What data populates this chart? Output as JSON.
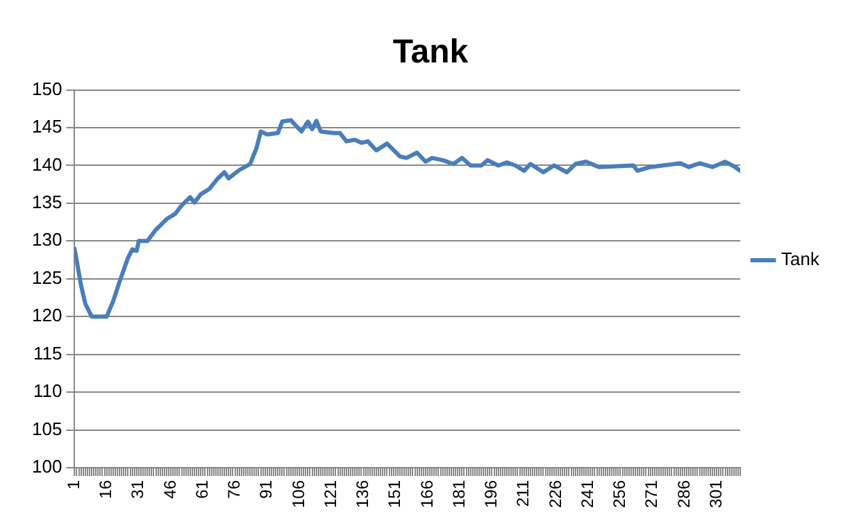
{
  "chart_data": {
    "type": "line",
    "title": "Tank",
    "grid": "y",
    "legend": "right",
    "marker": "none",
    "line_style": "solid",
    "xlim": [
      1,
      312
    ],
    "ylim": [
      100,
      150
    ],
    "yticks": [
      100,
      105,
      110,
      115,
      120,
      125,
      130,
      135,
      140,
      145,
      150
    ],
    "xticks": [
      1,
      {
        "value": 2,
        "label": null
      },
      {
        "value": 3,
        "label": null
      },
      {
        "value": 4,
        "label": null
      },
      {
        "value": 5,
        "label": null
      },
      {
        "value": 6,
        "label": null
      },
      {
        "value": 7,
        "label": null
      },
      {
        "value": 8,
        "label": null
      },
      {
        "value": 9,
        "label": null
      },
      {
        "value": 10,
        "label": null
      },
      {
        "value": 11,
        "label": null
      },
      {
        "value": 12,
        "label": null
      },
      {
        "value": 13,
        "label": null
      },
      {
        "value": 14,
        "label": null
      },
      {
        "value": 15,
        "label": null
      },
      16,
      {
        "value": 17,
        "label": null
      },
      {
        "value": 18,
        "label": null
      },
      {
        "value": 19,
        "label": null
      },
      {
        "value": 20,
        "label": null
      },
      {
        "value": 21,
        "label": null
      },
      {
        "value": 22,
        "label": null
      },
      {
        "value": 23,
        "label": null
      },
      {
        "value": 24,
        "label": null
      },
      {
        "value": 25,
        "label": null
      },
      {
        "value": 26,
        "label": null
      },
      {
        "value": 27,
        "label": null
      },
      {
        "value": 28,
        "label": null
      },
      {
        "value": 29,
        "label": null
      },
      {
        "value": 30,
        "label": null
      },
      31,
      {
        "value": 32,
        "label": null
      },
      {
        "value": 33,
        "label": null
      },
      {
        "value": 34,
        "label": null
      },
      {
        "value": 35,
        "label": null
      },
      {
        "value": 36,
        "label": null
      },
      {
        "value": 37,
        "label": null
      },
      {
        "value": 38,
        "label": null
      },
      {
        "value": 39,
        "label": null
      },
      {
        "value": 40,
        "label": null
      },
      {
        "value": 41,
        "label": null
      },
      {
        "value": 42,
        "label": null
      },
      {
        "value": 43,
        "label": null
      },
      {
        "value": 44,
        "label": null
      },
      {
        "value": 45,
        "label": null
      },
      46,
      {
        "value": 47,
        "label": null
      },
      {
        "value": 48,
        "label": null
      },
      {
        "value": 49,
        "label": null
      },
      {
        "value": 50,
        "label": null
      },
      {
        "value": 51,
        "label": null
      },
      {
        "value": 52,
        "label": null
      },
      {
        "value": 53,
        "label": null
      },
      {
        "value": 54,
        "label": null
      },
      {
        "value": 55,
        "label": null
      },
      {
        "value": 56,
        "label": null
      },
      {
        "value": 57,
        "label": null
      },
      {
        "value": 58,
        "label": null
      },
      {
        "value": 59,
        "label": null
      },
      {
        "value": 60,
        "label": null
      },
      61,
      {
        "value": 62,
        "label": null
      },
      {
        "value": 63,
        "label": null
      },
      {
        "value": 64,
        "label": null
      },
      {
        "value": 65,
        "label": null
      },
      {
        "value": 66,
        "label": null
      },
      {
        "value": 67,
        "label": null
      },
      {
        "value": 68,
        "label": null
      },
      {
        "value": 69,
        "label": null
      },
      {
        "value": 70,
        "label": null
      },
      {
        "value": 71,
        "label": null
      },
      {
        "value": 72,
        "label": null
      },
      {
        "value": 73,
        "label": null
      },
      {
        "value": 74,
        "label": null
      },
      {
        "value": 75,
        "label": null
      },
      76,
      {
        "value": 77,
        "label": null
      },
      {
        "value": 78,
        "label": null
      },
      {
        "value": 79,
        "label": null
      },
      {
        "value": 80,
        "label": null
      },
      {
        "value": 81,
        "label": null
      },
      {
        "value": 82,
        "label": null
      },
      {
        "value": 83,
        "label": null
      },
      {
        "value": 84,
        "label": null
      },
      {
        "value": 85,
        "label": null
      },
      {
        "value": 86,
        "label": null
      },
      {
        "value": 87,
        "label": null
      },
      {
        "value": 88,
        "label": null
      },
      {
        "value": 89,
        "label": null
      },
      {
        "value": 90,
        "label": null
      },
      91,
      {
        "value": 92,
        "label": null
      },
      {
        "value": 93,
        "label": null
      },
      {
        "value": 94,
        "label": null
      },
      {
        "value": 95,
        "label": null
      },
      {
        "value": 96,
        "label": null
      },
      {
        "value": 97,
        "label": null
      },
      {
        "value": 98,
        "label": null
      },
      {
        "value": 99,
        "label": null
      },
      {
        "value": 100,
        "label": null
      },
      {
        "value": 101,
        "label": null
      },
      {
        "value": 102,
        "label": null
      },
      {
        "value": 103,
        "label": null
      },
      {
        "value": 104,
        "label": null
      },
      {
        "value": 105,
        "label": null
      },
      106,
      {
        "value": 107,
        "label": null
      },
      {
        "value": 108,
        "label": null
      },
      {
        "value": 109,
        "label": null
      },
      {
        "value": 110,
        "label": null
      },
      {
        "value": 111,
        "label": null
      },
      {
        "value": 112,
        "label": null
      },
      {
        "value": 113,
        "label": null
      },
      {
        "value": 114,
        "label": null
      },
      {
        "value": 115,
        "label": null
      },
      {
        "value": 116,
        "label": null
      },
      {
        "value": 117,
        "label": null
      },
      {
        "value": 118,
        "label": null
      },
      {
        "value": 119,
        "label": null
      },
      {
        "value": 120,
        "label": null
      },
      121,
      {
        "value": 122,
        "label": null
      },
      {
        "value": 123,
        "label": null
      },
      {
        "value": 124,
        "label": null
      },
      {
        "value": 125,
        "label": null
      },
      {
        "value": 126,
        "label": null
      },
      {
        "value": 127,
        "label": null
      },
      {
        "value": 128,
        "label": null
      },
      {
        "value": 129,
        "label": null
      },
      {
        "value": 130,
        "label": null
      },
      {
        "value": 131,
        "label": null
      },
      {
        "value": 132,
        "label": null
      },
      {
        "value": 133,
        "label": null
      },
      {
        "value": 134,
        "label": null
      },
      {
        "value": 135,
        "label": null
      },
      136,
      {
        "value": 137,
        "label": null
      },
      {
        "value": 138,
        "label": null
      },
      {
        "value": 139,
        "label": null
      },
      {
        "value": 140,
        "label": null
      },
      {
        "value": 141,
        "label": null
      },
      {
        "value": 142,
        "label": null
      },
      {
        "value": 143,
        "label": null
      },
      {
        "value": 144,
        "label": null
      },
      {
        "value": 145,
        "label": null
      },
      {
        "value": 146,
        "label": null
      },
      {
        "value": 147,
        "label": null
      },
      {
        "value": 148,
        "label": null
      },
      {
        "value": 149,
        "label": null
      },
      {
        "value": 150,
        "label": null
      },
      151,
      {
        "value": 152,
        "label": null
      },
      {
        "value": 153,
        "label": null
      },
      {
        "value": 154,
        "label": null
      },
      {
        "value": 155,
        "label": null
      },
      {
        "value": 156,
        "label": null
      },
      {
        "value": 157,
        "label": null
      },
      {
        "value": 158,
        "label": null
      },
      {
        "value": 159,
        "label": null
      },
      {
        "value": 160,
        "label": null
      },
      {
        "value": 161,
        "label": null
      },
      {
        "value": 162,
        "label": null
      },
      {
        "value": 163,
        "label": null
      },
      {
        "value": 164,
        "label": null
      },
      {
        "value": 165,
        "label": null
      },
      166,
      {
        "value": 167,
        "label": null
      },
      {
        "value": 168,
        "label": null
      },
      {
        "value": 169,
        "label": null
      },
      {
        "value": 170,
        "label": null
      },
      {
        "value": 171,
        "label": null
      },
      {
        "value": 172,
        "label": null
      },
      {
        "value": 173,
        "label": null
      },
      {
        "value": 174,
        "label": null
      },
      {
        "value": 175,
        "label": null
      },
      {
        "value": 176,
        "label": null
      },
      {
        "value": 177,
        "label": null
      },
      {
        "value": 178,
        "label": null
      },
      {
        "value": 179,
        "label": null
      },
      {
        "value": 180,
        "label": null
      },
      181,
      {
        "value": 182,
        "label": null
      },
      {
        "value": 183,
        "label": null
      },
      {
        "value": 184,
        "label": null
      },
      {
        "value": 185,
        "label": null
      },
      {
        "value": 186,
        "label": null
      },
      {
        "value": 187,
        "label": null
      },
      {
        "value": 188,
        "label": null
      },
      {
        "value": 189,
        "label": null
      },
      {
        "value": 190,
        "label": null
      },
      {
        "value": 191,
        "label": null
      },
      {
        "value": 192,
        "label": null
      },
      {
        "value": 193,
        "label": null
      },
      {
        "value": 194,
        "label": null
      },
      {
        "value": 195,
        "label": null
      },
      196,
      {
        "value": 197,
        "label": null
      },
      {
        "value": 198,
        "label": null
      },
      {
        "value": 199,
        "label": null
      },
      {
        "value": 200,
        "label": null
      },
      {
        "value": 201,
        "label": null
      },
      {
        "value": 202,
        "label": null
      },
      {
        "value": 203,
        "label": null
      },
      {
        "value": 204,
        "label": null
      },
      {
        "value": 205,
        "label": null
      },
      {
        "value": 206,
        "label": null
      },
      {
        "value": 207,
        "label": null
      },
      {
        "value": 208,
        "label": null
      },
      {
        "value": 209,
        "label": null
      },
      {
        "value": 210,
        "label": null
      },
      211,
      {
        "value": 212,
        "label": null
      },
      {
        "value": 213,
        "label": null
      },
      {
        "value": 214,
        "label": null
      },
      {
        "value": 215,
        "label": null
      },
      {
        "value": 216,
        "label": null
      },
      {
        "value": 217,
        "label": null
      },
      {
        "value": 218,
        "label": null
      },
      {
        "value": 219,
        "label": null
      },
      {
        "value": 220,
        "label": null
      },
      {
        "value": 221,
        "label": null
      },
      {
        "value": 222,
        "label": null
      },
      {
        "value": 223,
        "label": null
      },
      {
        "value": 224,
        "label": null
      },
      {
        "value": 225,
        "label": null
      },
      226,
      {
        "value": 227,
        "label": null
      },
      {
        "value": 228,
        "label": null
      },
      {
        "value": 229,
        "label": null
      },
      {
        "value": 230,
        "label": null
      },
      {
        "value": 231,
        "label": null
      },
      {
        "value": 232,
        "label": null
      },
      {
        "value": 233,
        "label": null
      },
      {
        "value": 234,
        "label": null
      },
      {
        "value": 235,
        "label": null
      },
      {
        "value": 236,
        "label": null
      },
      {
        "value": 237,
        "label": null
      },
      {
        "value": 238,
        "label": null
      },
      {
        "value": 239,
        "label": null
      },
      {
        "value": 240,
        "label": null
      },
      241,
      {
        "value": 242,
        "label": null
      },
      {
        "value": 243,
        "label": null
      },
      {
        "value": 244,
        "label": null
      },
      {
        "value": 245,
        "label": null
      },
      {
        "value": 246,
        "label": null
      },
      {
        "value": 247,
        "label": null
      },
      {
        "value": 248,
        "label": null
      },
      {
        "value": 249,
        "label": null
      },
      {
        "value": 250,
        "label": null
      },
      {
        "value": 251,
        "label": null
      },
      {
        "value": 252,
        "label": null
      },
      {
        "value": 253,
        "label": null
      },
      {
        "value": 254,
        "label": null
      },
      {
        "value": 255,
        "label": null
      },
      256,
      {
        "value": 257,
        "label": null
      },
      {
        "value": 258,
        "label": null
      },
      {
        "value": 259,
        "label": null
      },
      {
        "value": 260,
        "label": null
      },
      {
        "value": 261,
        "label": null
      },
      {
        "value": 262,
        "label": null
      },
      {
        "value": 263,
        "label": null
      },
      {
        "value": 264,
        "label": null
      },
      {
        "value": 265,
        "label": null
      },
      {
        "value": 266,
        "label": null
      },
      {
        "value": 267,
        "label": null
      },
      {
        "value": 268,
        "label": null
      },
      {
        "value": 269,
        "label": null
      },
      {
        "value": 270,
        "label": null
      },
      271,
      {
        "value": 272,
        "label": null
      },
      {
        "value": 273,
        "label": null
      },
      {
        "value": 274,
        "label": null
      },
      {
        "value": 275,
        "label": null
      },
      {
        "value": 276,
        "label": null
      },
      {
        "value": 277,
        "label": null
      },
      {
        "value": 278,
        "label": null
      },
      {
        "value": 279,
        "label": null
      },
      {
        "value": 280,
        "label": null
      },
      {
        "value": 281,
        "label": null
      },
      {
        "value": 282,
        "label": null
      },
      {
        "value": 283,
        "label": null
      },
      {
        "value": 284,
        "label": null
      },
      {
        "value": 285,
        "label": null
      },
      286,
      {
        "value": 287,
        "label": null
      },
      {
        "value": 288,
        "label": null
      },
      {
        "value": 289,
        "label": null
      },
      {
        "value": 290,
        "label": null
      },
      {
        "value": 291,
        "label": null
      },
      {
        "value": 292,
        "label": null
      },
      {
        "value": 293,
        "label": null
      },
      {
        "value": 294,
        "label": null
      },
      {
        "value": 295,
        "label": null
      },
      {
        "value": 296,
        "label": null
      },
      {
        "value": 297,
        "label": null
      },
      {
        "value": 298,
        "label": null
      },
      {
        "value": 299,
        "label": null
      },
      {
        "value": 300,
        "label": null
      },
      301,
      {
        "value": 302,
        "label": null
      },
      {
        "value": 303,
        "label": null
      },
      {
        "value": 304,
        "label": null
      },
      {
        "value": 305,
        "label": null
      },
      {
        "value": 306,
        "label": null
      },
      {
        "value": 307,
        "label": null
      },
      {
        "value": 308,
        "label": null
      },
      {
        "value": 309,
        "label": null
      },
      {
        "value": 310,
        "label": null
      },
      {
        "value": 311,
        "label": null
      },
      {
        "value": 312,
        "label": null
      }
    ],
    "series": [
      {
        "name": "Tank",
        "color": "#4a7ebb",
        "x": [
          1,
          4,
          6,
          9,
          16,
          19,
          22,
          26,
          28,
          30,
          31,
          35,
          39,
          44,
          48,
          51,
          55,
          57,
          60,
          64,
          68,
          71,
          73,
          78,
          83,
          86,
          88,
          91,
          96,
          98,
          102,
          107,
          110,
          112,
          114,
          116,
          122,
          125,
          128,
          132,
          135,
          138,
          142,
          147,
          153,
          156,
          161,
          165,
          168,
          173,
          178,
          182,
          186,
          191,
          194,
          199,
          203,
          207,
          211,
          214,
          220,
          225,
          231,
          235,
          240,
          246,
          262,
          264,
          270,
          284,
          288,
          293,
          299,
          305,
          309,
          312
        ],
        "values": [
          129,
          124.2,
          121.7,
          120,
          120,
          122,
          124.6,
          127.8,
          128.9,
          128.7,
          130,
          130,
          131.5,
          132.9,
          133.6,
          134.7,
          135.8,
          135.1,
          136.2,
          136.9,
          138.3,
          139.1,
          138.3,
          139.4,
          140.2,
          142.3,
          144.5,
          144.1,
          144.3,
          145.8,
          146,
          144.5,
          145.8,
          144.8,
          145.9,
          144.5,
          144.3,
          144.3,
          143.2,
          143.4,
          143,
          143.2,
          142,
          142.9,
          141.2,
          141,
          141.7,
          140.5,
          141,
          140.7,
          140.2,
          141,
          140,
          140,
          140.7,
          140,
          140.4,
          140,
          139.3,
          140.2,
          139.1,
          140,
          139.1,
          140.2,
          140.5,
          139.8,
          140,
          139.3,
          139.8,
          140.3,
          139.8,
          140.3,
          139.8,
          140.5,
          139.9,
          139.3
        ]
      }
    ]
  }
}
